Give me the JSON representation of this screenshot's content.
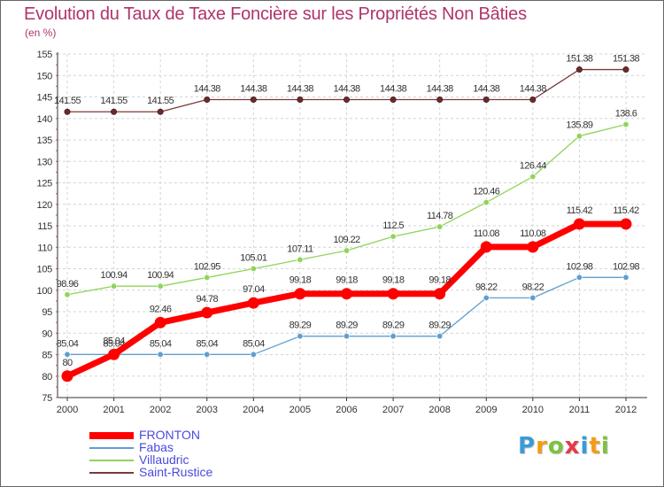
{
  "title": "Evolution du Taux de Taxe Foncière sur les Propriétés Non Bâties",
  "subtitle": "(en %)",
  "brand": {
    "letters": [
      "P",
      "r",
      "o",
      "x",
      "i",
      "t",
      "i"
    ],
    "colors": [
      "#3a9ad9",
      "#f39c12",
      "#7cc242",
      "#e63946",
      "#3a9ad9",
      "#f39c12",
      "#7cc242"
    ]
  },
  "chart_data": {
    "type": "line",
    "title": "Evolution du Taux de Taxe Foncière sur les Propriétés Non Bâties",
    "ylabel": "(en %)",
    "xlabel": "",
    "ylim": [
      75,
      155
    ],
    "ytick_step": 5,
    "categories": [
      "2000",
      "2001",
      "2002",
      "2003",
      "2004",
      "2005",
      "2006",
      "2007",
      "2008",
      "2009",
      "2010",
      "2011",
      "2012"
    ],
    "series": [
      {
        "name": "FRONTON",
        "color": "#ff0000",
        "highlight": true,
        "values": [
          80,
          85.04,
          92.46,
          94.78,
          97.04,
          99.18,
          99.18,
          99.18,
          99.18,
          110.08,
          110.08,
          115.42,
          115.42
        ]
      },
      {
        "name": "Fabas",
        "color": "#5f9fcf",
        "highlight": false,
        "values": [
          85.04,
          85.04,
          85.04,
          85.04,
          85.04,
          89.29,
          89.29,
          89.29,
          89.29,
          98.22,
          98.22,
          102.98,
          102.98
        ]
      },
      {
        "name": "Villaudric",
        "color": "#90d45a",
        "highlight": false,
        "values": [
          98.96,
          100.94,
          100.94,
          102.95,
          105.01,
          107.11,
          109.22,
          112.5,
          114.78,
          120.46,
          126.44,
          135.89,
          138.6
        ]
      },
      {
        "name": "Saint-Rustice",
        "color": "#7a3a3a",
        "highlight": false,
        "values": [
          141.55,
          141.55,
          141.55,
          144.38,
          144.38,
          144.38,
          144.38,
          144.38,
          144.38,
          144.38,
          144.38,
          151.38,
          151.38
        ]
      }
    ],
    "legend_position": "bottom-left",
    "grid": true
  }
}
